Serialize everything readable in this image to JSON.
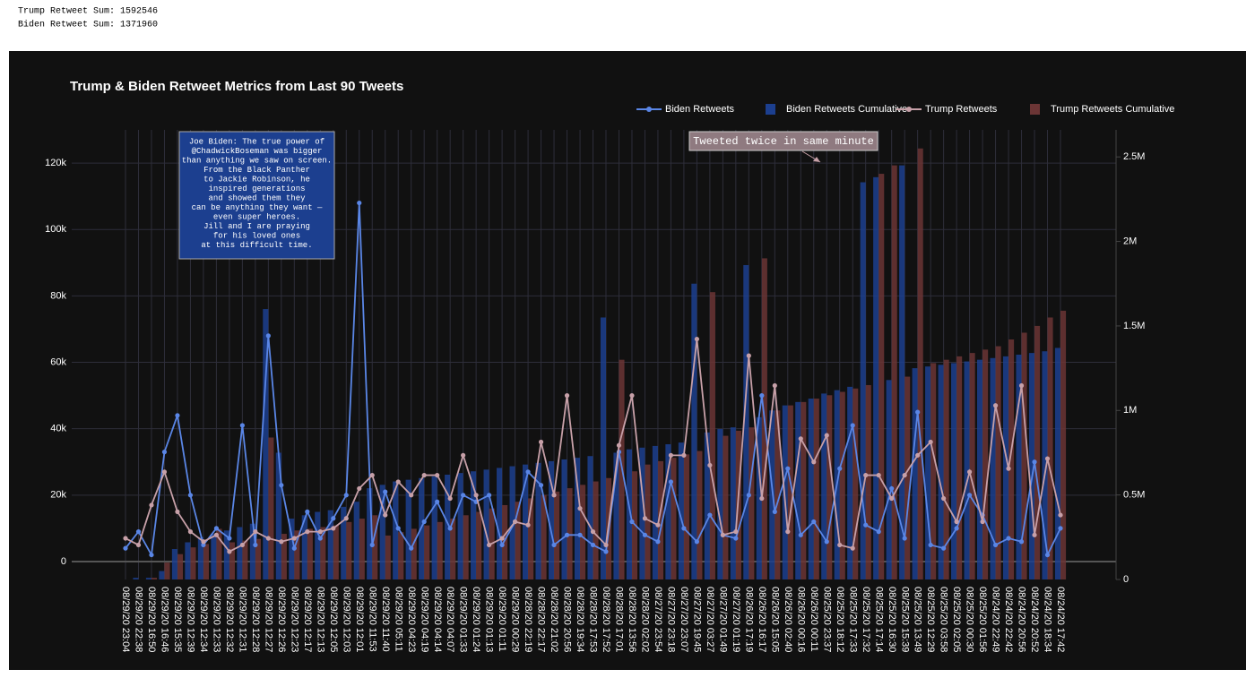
{
  "header": [
    "Trump Retweet Sum:  1592546",
    "Biden Retweet Sum:  1371960"
  ],
  "chart_data": {
    "type": "bar",
    "title": "Trump & Biden Retweet Metrics from Last 90 Tweets",
    "legend": "top-right",
    "grid": true,
    "categories": [
      "08/29/20 23:04",
      "08/29/20 22:38",
      "08/29/20 16:50",
      "08/29/20 16:46",
      "08/29/20 15:35",
      "08/29/20 12:39",
      "08/29/20 12:34",
      "08/29/20 12:33",
      "08/29/20 12:32",
      "08/29/20 12:31",
      "08/29/20 12:28",
      "08/29/20 12:27",
      "08/29/20 12:26",
      "08/29/20 12:23",
      "08/29/20 12:17",
      "08/29/20 12:13",
      "08/29/20 12:05",
      "08/29/20 12:03",
      "08/29/20 12:01",
      "08/29/20 11:53",
      "08/29/20 11:40",
      "08/29/20 05:11",
      "08/29/20 04:23",
      "08/29/20 04:19",
      "08/29/20 04:14",
      "08/29/20 04:07",
      "08/29/20 01:33",
      "08/29/20 01:24",
      "08/29/20 01:13",
      "08/29/20 01:11",
      "08/29/20 00:29",
      "08/28/20 22:19",
      "08/28/20 22:17",
      "08/28/20 21:02",
      "08/28/20 20:56",
      "08/28/20 19:34",
      "08/28/20 17:53",
      "08/28/20 17:52",
      "08/28/20 17:01",
      "08/28/20 13:56",
      "08/28/20 02:02",
      "08/27/20 23:54",
      "08/27/20 23:18",
      "08/27/20 23:07",
      "08/27/20 19:45",
      "08/27/20 03:27",
      "08/27/20 01:49",
      "08/27/20 01:19",
      "08/26/20 17:19",
      "08/26/20 16:17",
      "08/26/20 15:05",
      "08/26/20 02:40",
      "08/26/20 00:16",
      "08/26/20 00:11",
      "08/25/20 23:37",
      "08/25/20 18:12",
      "08/25/20 17:33",
      "08/25/20 17:32",
      "08/25/20 17:14",
      "08/25/20 16:30",
      "08/25/20 15:39",
      "08/25/20 13:49",
      "08/25/20 12:29",
      "08/25/20 03:58",
      "08/25/20 02:05",
      "08/25/20 00:30",
      "08/25/20 01:56",
      "08/24/20 22:49",
      "08/24/20 22:42",
      "08/24/20 20:56",
      "08/24/20 20:52",
      "08/24/20 18:34",
      "08/24/20 17:42"
    ],
    "series": [
      {
        "name": "Biden Retweets",
        "type": "line",
        "color": "#5a86e6",
        "axis": "y",
        "values": [
          4000,
          9000,
          2000,
          33000,
          44000,
          20000,
          5000,
          10000,
          7000,
          41000,
          5000,
          68000,
          23000,
          4000,
          15000,
          7000,
          13000,
          20000,
          108000,
          5000,
          21000,
          10000,
          4000,
          12000,
          18000,
          10000,
          20000,
          18000,
          20000,
          5000,
          12000,
          27000,
          23000,
          5000,
          8000,
          8000,
          5000,
          3000,
          33000,
          12000,
          8000,
          6000,
          24000,
          10000,
          6000,
          14000,
          8000,
          7000,
          20000,
          50000,
          15000,
          28000,
          8000,
          12000,
          6000,
          28000,
          41000,
          11000,
          9000,
          22000,
          7000,
          45000,
          5000,
          4000,
          10000,
          20000,
          14000,
          5000,
          7000,
          6000,
          30000,
          2000,
          10000
        ]
      },
      {
        "name": "Biden Retweets Cumulative",
        "type": "bar",
        "color": "#1c3f8f",
        "axis": "y2",
        "values": [
          0,
          10000,
          10000,
          50000,
          180000,
          220000,
          250000,
          270000,
          290000,
          310000,
          330000,
          1600000,
          750000,
          360000,
          380000,
          400000,
          410000,
          430000,
          460000,
          540000,
          560000,
          580000,
          590000,
          600000,
          610000,
          620000,
          630000,
          640000,
          650000,
          660000,
          670000,
          680000,
          690000,
          700000,
          710000,
          720000,
          730000,
          1550000,
          750000,
          770000,
          780000,
          790000,
          800000,
          810000,
          1750000,
          870000,
          890000,
          900000,
          1860000,
          960000,
          1000000,
          1030000,
          1050000,
          1070000,
          1100000,
          1120000,
          1140000,
          2350000,
          2380000,
          1180000,
          2450000,
          1250000,
          1260000,
          1270000,
          1280000,
          1290000,
          1300000,
          1310000,
          1320000,
          1330000,
          1340000,
          1350000,
          1370000
        ]
      },
      {
        "name": "Trump Retweets",
        "type": "line",
        "color": "#c7a0a8",
        "axis": "y",
        "values": [
          7000,
          5000,
          17000,
          27000,
          15000,
          9000,
          6000,
          8000,
          3000,
          5000,
          9000,
          7000,
          6000,
          7000,
          9000,
          9000,
          10000,
          13000,
          22000,
          26000,
          14000,
          24000,
          20000,
          26000,
          26000,
          19000,
          32000,
          20000,
          5000,
          7000,
          12000,
          11000,
          36000,
          20000,
          50000,
          16000,
          9000,
          5000,
          35000,
          50000,
          13000,
          11000,
          32000,
          32000,
          67000,
          29000,
          8000,
          9000,
          62000,
          19000,
          53000,
          9000,
          37000,
          30000,
          38000,
          5000,
          4000,
          26000,
          26000,
          19000,
          26000,
          32000,
          36000,
          19000,
          12000,
          27000,
          12000,
          47000,
          28000,
          53000,
          8000,
          31000,
          14000
        ]
      },
      {
        "name": "Trump Retweets Cumulative",
        "type": "bar",
        "color": "#6b3535",
        "axis": "y2",
        "values": [
          0,
          0,
          10000,
          100000,
          150000,
          190000,
          210000,
          300000,
          220000,
          230000,
          240000,
          840000,
          270000,
          290000,
          300000,
          310000,
          320000,
          340000,
          360000,
          380000,
          260000,
          280000,
          300000,
          320000,
          340000,
          360000,
          380000,
          400000,
          420000,
          440000,
          460000,
          480000,
          500000,
          520000,
          540000,
          560000,
          580000,
          600000,
          1300000,
          640000,
          680000,
          700000,
          720000,
          740000,
          760000,
          1700000,
          850000,
          880000,
          900000,
          1900000,
          1000000,
          1030000,
          1050000,
          1070000,
          1090000,
          1110000,
          1130000,
          1150000,
          2400000,
          2450000,
          1200000,
          2550000,
          1280000,
          1300000,
          1320000,
          1340000,
          1360000,
          1380000,
          1420000,
          1460000,
          1500000,
          1550000,
          1590000
        ]
      }
    ],
    "ylim": [
      -5400,
      130000
    ],
    "yticks": [
      0,
      {
        "value": 20000,
        "label": "20k"
      },
      {
        "value": 40000,
        "label": "40k"
      },
      {
        "value": 60000,
        "label": "60k"
      },
      {
        "value": 80000,
        "label": "80k"
      },
      {
        "value": 100000,
        "label": "100k"
      },
      {
        "value": 120000,
        "label": "120k"
      }
    ],
    "y2lim": [
      0,
      2660000
    ],
    "y2ticks": [
      0,
      {
        "value": 500000,
        "label": "0.5M"
      },
      {
        "value": 1000000,
        "label": "1M"
      },
      {
        "value": 1500000,
        "label": "1.5M"
      },
      {
        "value": 2000000,
        "label": "2M"
      },
      {
        "value": 2500000,
        "label": "2.5M"
      }
    ],
    "annotations": [
      {
        "text": [
          "Joe Biden: The true power of",
          "@ChadwickBoseman was bigger",
          "than anything we saw on screen.",
          "From the Black Panther",
          "to Jackie Robinson, he",
          "inspired generations",
          "and showed them they",
          "can be anything they want —",
          "even super heroes.",
          "Jill and I are praying",
          "for his loved ones",
          "at this difficult time."
        ]
      },
      {
        "text": [
          "Tweeted twice in same minute"
        ]
      }
    ]
  }
}
